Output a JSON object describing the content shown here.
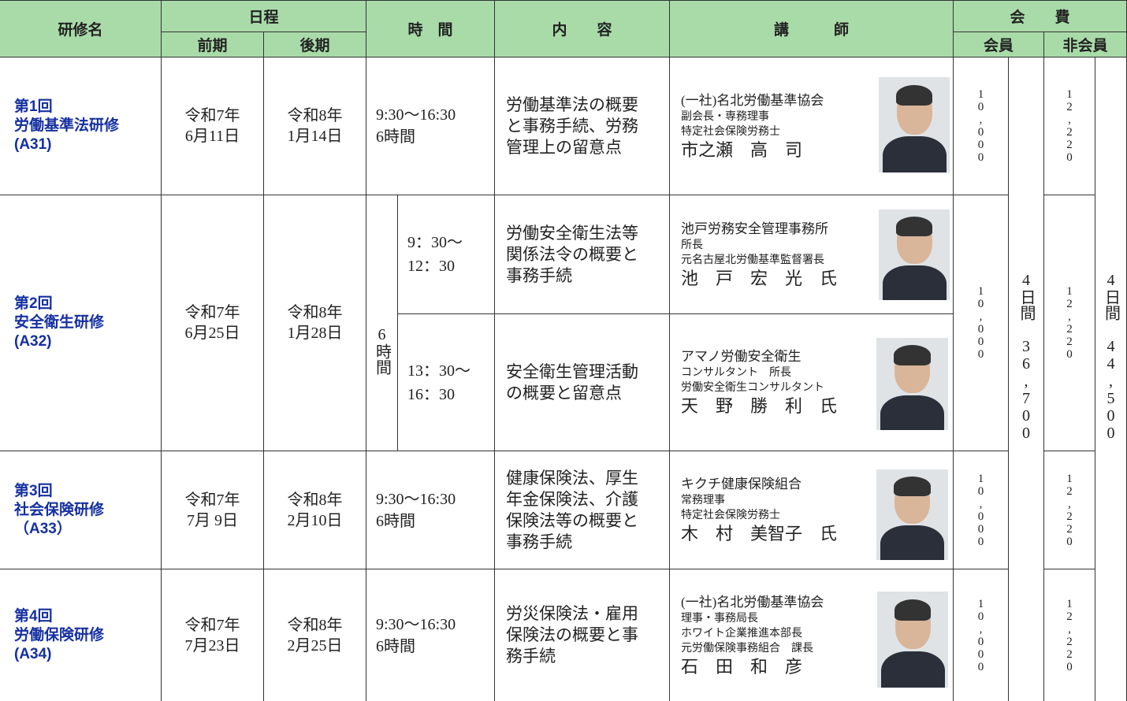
{
  "header": {
    "course": "研修名",
    "schedule": "日程",
    "first_term": "前期",
    "second_term": "後期",
    "time": "時　間",
    "content": "内　　容",
    "lecturer": "講　　　師",
    "fee": "会　　費",
    "member": "会員",
    "non_member": "非会員"
  },
  "courses": [
    {
      "number": "第1回",
      "title": "労働基準法研修",
      "code": "(A31)",
      "first_term": [
        "令和7年",
        "6月11日"
      ],
      "second_term": [
        "令和8年",
        "1月14日"
      ],
      "time": "9:30～16:30",
      "duration": "6時間",
      "content": "労働基準法の概要と事務手続、労務管理上の留意点",
      "lecturer": {
        "lines": [
          "(一社)名北労働基準協会",
          "副会長・専務理事",
          "特定社会保険労務士"
        ],
        "name": "市之瀬　高　司"
      },
      "member_fee": "10,000",
      "non_member_fee": "12,220"
    },
    {
      "number": "第2回",
      "title": "安全衛生研修",
      "code": "(A32)",
      "first_term": [
        "令和7年",
        "6月25日"
      ],
      "second_term": [
        "令和8年",
        "1月28日"
      ],
      "duration": "6時間",
      "sessions": [
        {
          "start": "9：30～",
          "end": "12：30",
          "content": "労働安全衛生法等関係法令の概要と事務手続",
          "lecturer": {
            "lines": [
              "池戸労務安全管理事務所",
              "所長",
              "元名古屋北労働基準監督署長"
            ],
            "name": "池　戸　宏　光　氏"
          }
        },
        {
          "start": "13：30～",
          "end": "16：30",
          "content": "安全衛生管理活動の概要と留意点",
          "lecturer": {
            "lines": [
              "アマノ労働安全衛生",
              "コンサルタント　所長",
              "労働安全衛生コンサルタント"
            ],
            "name": "天　野　勝　利　氏"
          }
        }
      ],
      "member_fee": "10,000",
      "non_member_fee": "12,220"
    },
    {
      "number": "第3回",
      "title": "社会保険研修",
      "code": "（A33）",
      "first_term": [
        "令和7年",
        "7月 9日"
      ],
      "second_term": [
        "令和8年",
        "2月10日"
      ],
      "time": "9:30～16:30",
      "duration": "6時間",
      "content": "健康保険法、厚生年金保険法、介護保険法等の概要と事務手続",
      "lecturer": {
        "lines": [
          "キクチ健康保険組合",
          "常務理事",
          "特定社会保険労務士"
        ],
        "name": "木　村　美智子　氏"
      },
      "member_fee": "10,000",
      "non_member_fee": "12,220"
    },
    {
      "number": "第4回",
      "title": "労働保険研修",
      "code": "(A34)",
      "first_term": [
        "令和7年",
        "7月23日"
      ],
      "second_term": [
        "令和8年",
        "2月25日"
      ],
      "time": "9:30～16:30",
      "duration": "6時間",
      "content": "労災保険法・雇用保険法の概要と事務手続",
      "lecturer": {
        "lines": [
          "(一社)名北労働基準協会",
          "理事・事務局長",
          "ホワイト企業推進本部長",
          "元労働保険事務組合　課長"
        ],
        "name": "石　田　和　彦"
      },
      "member_fee": "10,000",
      "non_member_fee": "12,220"
    }
  ],
  "totals": {
    "member": {
      "days": "4日間",
      "amount": "36,700"
    },
    "non_member": {
      "days": "4日間",
      "amount": "44,500"
    }
  }
}
